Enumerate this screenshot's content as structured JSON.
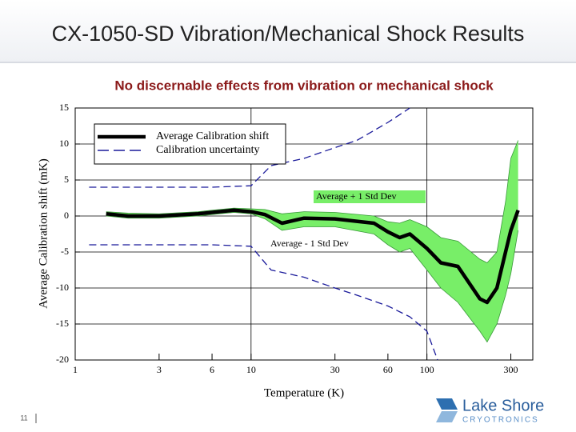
{
  "slide": {
    "title": "CX-1050-SD Vibration/Mechanical Shock Results",
    "page_number": "11"
  },
  "logo": {
    "name": "Lake Shore",
    "tagline": "CRYOTRONICS"
  },
  "chart_data": {
    "type": "line",
    "title": "No discernable effects from vibration or mechanical shock",
    "x_label": "Temperature (K)",
    "y_label": "Average Calibration shift (mK)",
    "x_scale": "log",
    "xlim": [
      1,
      400
    ],
    "xticks": [
      1,
      3,
      6,
      10,
      30,
      60,
      100,
      300
    ],
    "ylim": [
      -20,
      15
    ],
    "yticks": [
      -20,
      -15,
      -10,
      -5,
      0,
      5,
      10,
      15
    ],
    "grid": true,
    "legend": "upper left",
    "x": [
      1.5,
      2,
      3,
      5,
      6,
      8,
      10,
      12,
      15,
      20,
      30,
      50,
      60,
      70,
      80,
      100,
      120,
      150,
      200,
      220,
      250,
      280,
      300,
      330
    ],
    "series": [
      {
        "name": "Average Calibration shift",
        "color": "#000000",
        "values": [
          0.3,
          0,
          0,
          0.3,
          0.5,
          0.8,
          0.6,
          0.2,
          -1,
          -0.3,
          -0.4,
          -1,
          -2.2,
          -3,
          -2.5,
          -4.5,
          -6.5,
          -7,
          -11.5,
          -12,
          -10,
          -5,
          -2,
          0.8
        ]
      },
      {
        "name": "Average + 1 Std Dev",
        "color": "#3a9a3a",
        "values": [
          0.6,
          0.4,
          0.3,
          0.6,
          0.8,
          1.1,
          1,
          0.9,
          0.3,
          0.6,
          0.5,
          0,
          -0.8,
          -1,
          -0.5,
          -1.5,
          -3,
          -3.5,
          -6,
          -6.5,
          -5,
          2,
          8,
          10.5
        ]
      },
      {
        "name": "Average - 1 Std Dev",
        "color": "#3a9a3a",
        "values": [
          0,
          -0.3,
          -0.3,
          0,
          0.2,
          0.5,
          0.3,
          -0.4,
          -2,
          -1.5,
          -1.5,
          -2.5,
          -4,
          -5,
          -4.5,
          -7.5,
          -10,
          -12,
          -16,
          -17.5,
          -15,
          -11,
          -8,
          -2
        ]
      }
    ],
    "band_color": "#78ee68",
    "uncertainty": {
      "name": "Calibration uncertainty",
      "color": "#1a1a9a",
      "x": [
        1.2,
        3,
        6,
        10,
        13,
        20,
        30,
        40,
        60,
        80,
        100,
        115
      ],
      "upper": [
        4,
        4,
        4,
        4.2,
        7,
        8,
        9.5,
        10.5,
        13,
        15,
        null,
        null
      ],
      "lower": [
        -4,
        -4,
        -4,
        -4.2,
        -7.5,
        -8.5,
        -10,
        -11,
        -12.5,
        -14,
        -16,
        -20
      ]
    }
  }
}
